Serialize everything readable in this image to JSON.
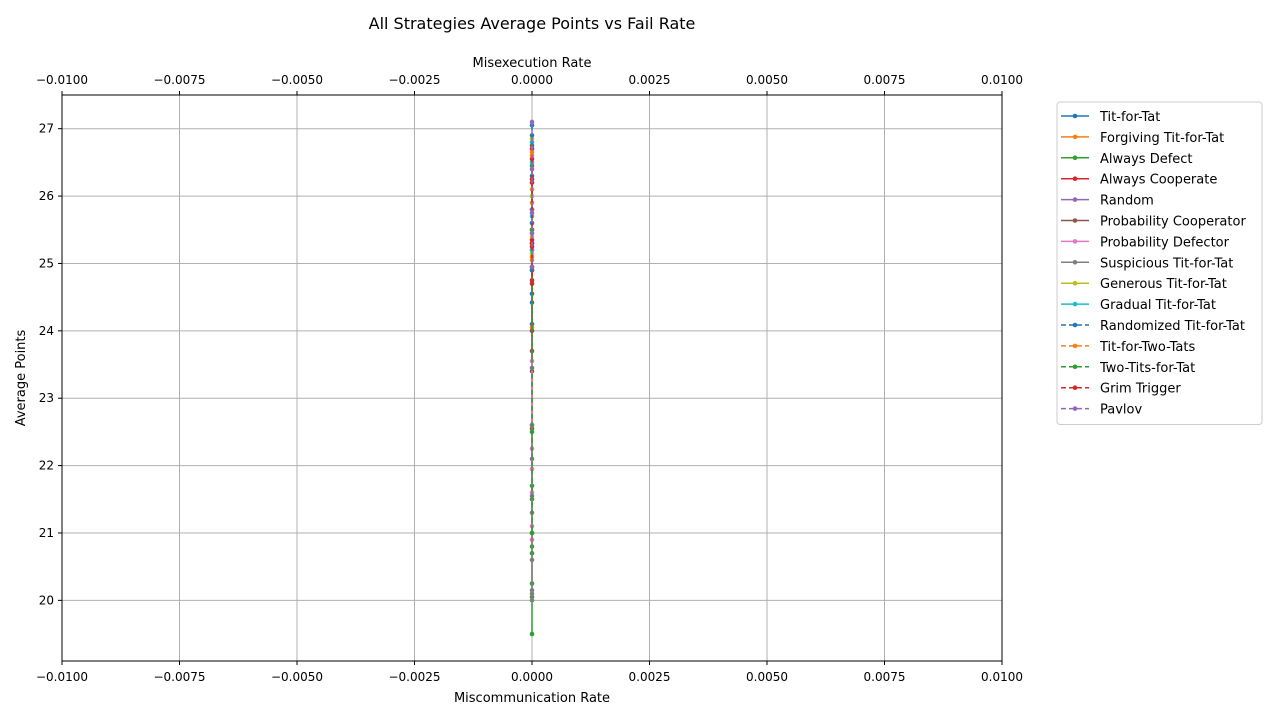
{
  "chart_data": {
    "type": "line",
    "title": "All Strategies Average Points vs Fail Rate",
    "xlabel": "Miscommunication Rate",
    "x2label": "Misexecution Rate",
    "ylabel": "Average Points",
    "xlim": [
      -0.01,
      0.01
    ],
    "ylim": [
      19.1,
      27.5
    ],
    "xticks": [
      -0.01,
      -0.0075,
      -0.005,
      -0.0025,
      0.0,
      0.0025,
      0.005,
      0.0075,
      0.01
    ],
    "xtick_labels": [
      "−0.0100",
      "−0.0075",
      "−0.0050",
      "−0.0025",
      "0.0000",
      "0.0025",
      "0.0050",
      "0.0075",
      "0.0100"
    ],
    "yticks": [
      20,
      21,
      22,
      23,
      24,
      25,
      26,
      27
    ],
    "ytick_labels": [
      "20",
      "21",
      "22",
      "23",
      "24",
      "25",
      "26",
      "27"
    ],
    "grid": true,
    "legend_position": "outside-right",
    "series": [
      {
        "name": "Tit-for-Tat",
        "color": "#1f77b4",
        "dash": "solid",
        "x": [
          0,
          0,
          0,
          0,
          0,
          0,
          0
        ],
        "y": [
          26.9,
          25.3,
          24.9,
          24.55,
          24.42,
          24.1,
          25.8
        ]
      },
      {
        "name": "Forgiving Tit-for-Tat",
        "color": "#ff7f0e",
        "dash": "solid",
        "x": [
          0,
          0,
          0,
          0,
          0
        ],
        "y": [
          26.6,
          25.9,
          25.1,
          25.05,
          24.05
        ]
      },
      {
        "name": "Always Defect",
        "color": "#2ca02c",
        "dash": "solid",
        "x": [
          0,
          0,
          0,
          0,
          0,
          0,
          0
        ],
        "y": [
          21.7,
          21.5,
          20.8,
          20.7,
          20.25,
          20.05,
          19.5
        ]
      },
      {
        "name": "Always Cooperate",
        "color": "#d62728",
        "dash": "solid",
        "x": [
          0,
          0,
          0,
          0,
          0,
          0
        ],
        "y": [
          26.7,
          26.2,
          25.3,
          25.2,
          24.95,
          24.75
        ]
      },
      {
        "name": "Random",
        "color": "#9467bd",
        "dash": "solid",
        "x": [
          0,
          0,
          0,
          0,
          0
        ],
        "y": [
          25.8,
          23.45,
          22.6,
          22.1,
          21.55
        ]
      },
      {
        "name": "Probability Cooperator",
        "color": "#8c564b",
        "dash": "solid",
        "x": [
          0,
          0,
          0,
          0,
          0
        ],
        "y": [
          26.75,
          24.0,
          23.7,
          23.4,
          22.55
        ]
      },
      {
        "name": "Probability Defector",
        "color": "#e377c2",
        "dash": "solid",
        "x": [
          0,
          0,
          0,
          0,
          0,
          0
        ],
        "y": [
          23.55,
          22.25,
          21.95,
          21.6,
          21.1,
          20.9
        ]
      },
      {
        "name": "Suspicious Tit-for-Tat",
        "color": "#7f7f7f",
        "dash": "solid",
        "x": [
          0,
          0,
          0,
          0,
          0,
          0,
          0
        ],
        "y": [
          22.6,
          21.3,
          21.0,
          20.6,
          20.15,
          20.1,
          20.0
        ]
      },
      {
        "name": "Generous Tit-for-Tat",
        "color": "#bcbd22",
        "dash": "solid",
        "x": [
          0,
          0,
          0,
          0
        ],
        "y": [
          26.85,
          26.0,
          25.4,
          25.15
        ]
      },
      {
        "name": "Gradual Tit-for-Tat",
        "color": "#17becf",
        "dash": "solid",
        "x": [
          0,
          0,
          0,
          0
        ],
        "y": [
          26.8,
          26.5,
          25.7,
          25.2
        ]
      },
      {
        "name": "Randomized Tit-for-Tat",
        "color": "#1f77b4",
        "dash": "dashed",
        "x": [
          0,
          0,
          0,
          0
        ],
        "y": [
          27.05,
          26.3,
          25.6,
          24.9
        ]
      },
      {
        "name": "Tit-for-Two-Tats",
        "color": "#ff7f0e",
        "dash": "dashed",
        "x": [
          0,
          0,
          0,
          0
        ],
        "y": [
          26.65,
          26.1,
          25.5,
          24.95
        ]
      },
      {
        "name": "Two-Tits-for-Tat",
        "color": "#2ca02c",
        "dash": "dashed",
        "x": [
          0,
          0,
          0,
          0
        ],
        "y": [
          26.45,
          25.5,
          22.5,
          21.0
        ]
      },
      {
        "name": "Grim Trigger",
        "color": "#d62728",
        "dash": "dashed",
        "x": [
          0,
          0,
          0,
          0,
          0
        ],
        "y": [
          26.55,
          26.25,
          25.35,
          25.25,
          24.7
        ]
      },
      {
        "name": "Pavlov",
        "color": "#9467bd",
        "dash": "dashed",
        "x": [
          0,
          0,
          0,
          0,
          0
        ],
        "y": [
          27.1,
          26.4,
          25.75,
          25.45,
          24.95
        ]
      }
    ]
  }
}
